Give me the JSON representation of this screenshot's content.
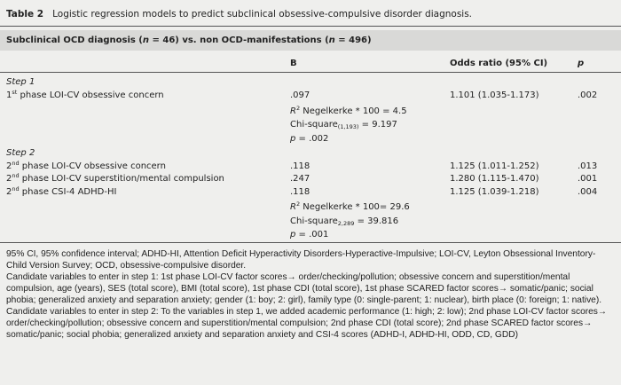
{
  "table_label": "Table 2",
  "title": "Logistic regression models to predict subclinical obsessive-compulsive disorder diagnosis.",
  "subheader": {
    "pre": "Subclinical OCD diagnosis (",
    "n1": "n",
    "mid": " = 46) vs. non OCD-manifestations (",
    "n2": "n",
    "post": " = 496)"
  },
  "columns": [
    "B",
    "Odds ratio (95% CI)",
    "p"
  ],
  "steps": [
    {
      "label": "Step 1",
      "rows": [
        {
          "num": "1",
          "sup": "st",
          "text": " phase LOI-CV obsessive concern",
          "b": ".097",
          "or": "1.101 (1.035-1.173)",
          "p": ".002"
        }
      ],
      "stats": {
        "r_pre": "R",
        "r_sup": "2",
        "r_post": " Negelkerke * 100 = 4.5",
        "chi_pre": "Chi-square",
        "chi_sub": "(1,193)",
        "chi_post": " = 9.197",
        "p_pre": "p",
        "p_post": " = .002"
      }
    },
    {
      "label": "Step 2",
      "rows": [
        {
          "num": "2",
          "sup": "nd",
          "text": " phase LOI-CV obsessive concern",
          "b": ".118",
          "or": "1.125 (1.011-1.252)",
          "p": ".013"
        },
        {
          "num": "2",
          "sup": "nd",
          "text": " phase LOI-CV superstition/mental compulsion",
          "b": ".247",
          "or": "1.280 (1.115-1.470)",
          "p": ".001"
        },
        {
          "num": "2",
          "sup": "nd",
          "text": " phase CSI-4 ADHD-HI",
          "b": ".118",
          "or": "1.125 (1.039-1.218)",
          "p": ".004"
        }
      ],
      "stats": {
        "r_pre": "R",
        "r_sup": "2",
        "r_post": " Negelkerke * 100= 29.6",
        "chi_pre": "Chi-square",
        "chi_sub": "2,289",
        "chi_post": " = 39.816",
        "p_pre": "p",
        "p_post": " = .001"
      }
    }
  ],
  "footnotes": [
    "95% CI, 95% confidence interval; ADHD-HI, Attention Deficit Hyperactivity Disorders-Hyperactive-Impulsive; LOI-CV, Leyton Obsessional Inventory-Child Version Survey; OCD, obsessive-compulsive disorder.",
    "Candidate variables to enter in step 1: 1st phase LOI-CV factor scores→ order/checking/pollution; obsessive concern and superstition/mental compulsion, age (years), SES (total score), BMI (total score), 1st phase CDI (total score), 1st phase SCARED factor scores→ somatic/panic; social phobia; generalized anxiety and separation anxiety; gender (1: boy; 2: girl), family type (0: single-parent; 1: nuclear), birth place (0: foreign; 1: native).",
    "Candidate variables to enter in step 2: To the variables in step 1, we added academic performance (1: high; 2: low); 2nd phase LOI-CV factor scores→ order/checking/pollution; obsessive concern and superstition/mental compulsion; 2nd phase CDI (total score); 2nd phase SCARED factor scores→ somatic/panic; social phobia; generalized anxiety and separation anxiety and CSI-4 scores (ADHD-I, ADHD-HI, ODD, CD, GDD)"
  ]
}
